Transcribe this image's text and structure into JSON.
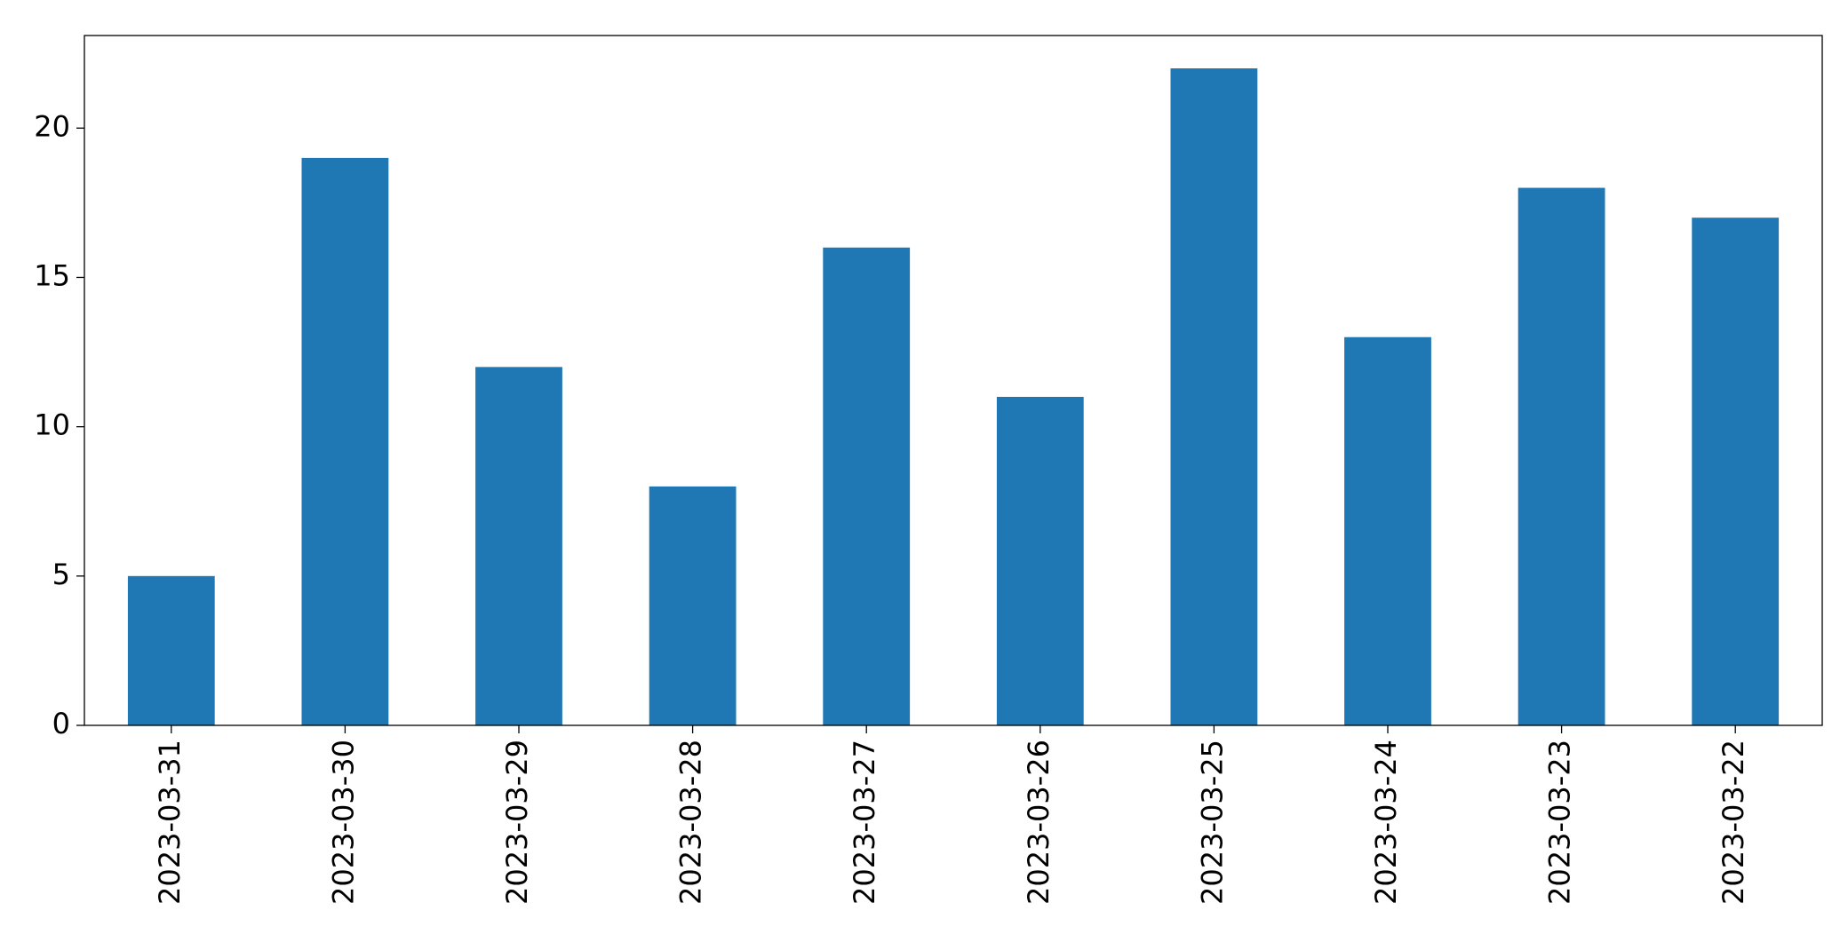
{
  "chart_data": {
    "type": "bar",
    "categories": [
      "2023-03-31",
      "2023-03-30",
      "2023-03-29",
      "2023-03-28",
      "2023-03-27",
      "2023-03-26",
      "2023-03-25",
      "2023-03-24",
      "2023-03-23",
      "2023-03-22"
    ],
    "values": [
      5,
      19,
      12,
      8,
      16,
      11,
      22,
      13,
      18,
      17
    ],
    "color": "#1f77b4",
    "ylim": [
      0,
      23.1
    ],
    "yticks": [
      0,
      5,
      10,
      15,
      20
    ],
    "grid": false
  }
}
